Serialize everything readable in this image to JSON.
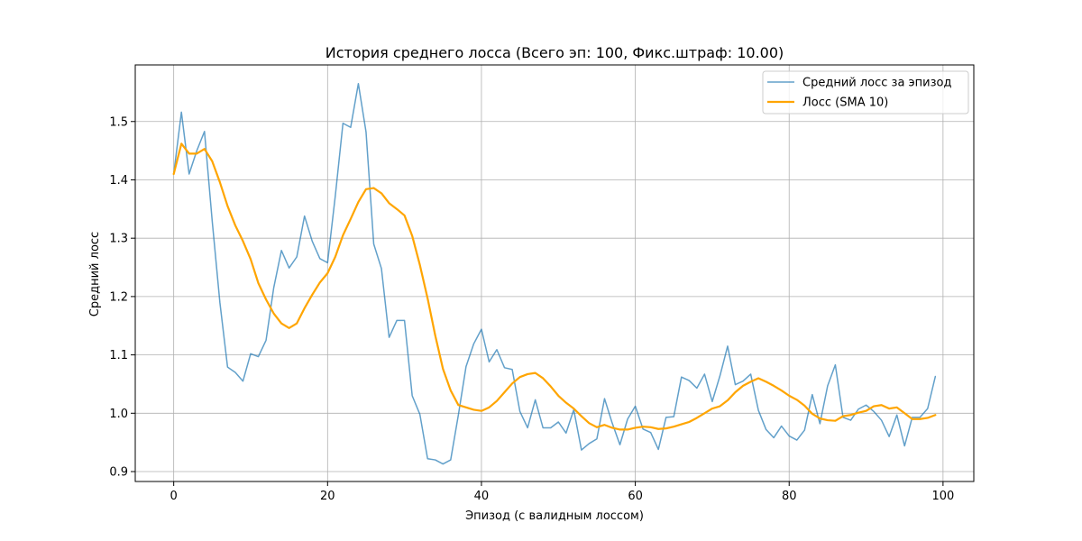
{
  "chart_data": {
    "type": "line",
    "title": "История среднего лосса (Всего эп: 100, Фикс.штраф: 10.00)",
    "xlabel": "Эпизод (с валидным лоссом)",
    "ylabel": "Средний лосс",
    "xlim": [
      -5,
      104
    ],
    "ylim": [
      0.883,
      1.597
    ],
    "xticks": [
      0,
      20,
      40,
      60,
      80,
      100
    ],
    "xtick_labels": [
      "0",
      "20",
      "40",
      "60",
      "80",
      "100"
    ],
    "yticks": [
      0.9,
      1.0,
      1.1,
      1.2,
      1.3,
      1.4,
      1.5
    ],
    "ytick_labels": [
      "0.9",
      "1.0",
      "1.1",
      "1.2",
      "1.3",
      "1.4",
      "1.5"
    ],
    "grid": true,
    "legend_position": "top-right",
    "x": [
      0,
      1,
      2,
      3,
      4,
      5,
      6,
      7,
      8,
      9,
      10,
      11,
      12,
      13,
      14,
      15,
      16,
      17,
      18,
      19,
      20,
      21,
      22,
      23,
      24,
      25,
      26,
      27,
      28,
      29,
      30,
      31,
      32,
      33,
      34,
      35,
      36,
      37,
      38,
      39,
      40,
      41,
      42,
      43,
      44,
      45,
      46,
      47,
      48,
      49,
      50,
      51,
      52,
      53,
      54,
      55,
      56,
      57,
      58,
      59,
      60,
      61,
      62,
      63,
      64,
      65,
      66,
      67,
      68,
      69,
      70,
      71,
      72,
      73,
      74,
      75,
      76,
      77,
      78,
      79,
      80,
      81,
      82,
      83,
      84,
      85,
      86,
      87,
      88,
      89,
      90,
      91,
      92,
      93,
      94,
      95,
      96,
      97,
      98,
      99
    ],
    "series": [
      {
        "name": "Средний лосс за эпизод",
        "color": "#1f77b4",
        "opacity": 0.7,
        "line_width": 1.5,
        "values": [
          1.41,
          1.516,
          1.41,
          1.45,
          1.483,
          1.33,
          1.19,
          1.079,
          1.07,
          1.055,
          1.102,
          1.097,
          1.125,
          1.215,
          1.279,
          1.249,
          1.268,
          1.338,
          1.295,
          1.265,
          1.258,
          1.372,
          1.497,
          1.49,
          1.565,
          1.482,
          1.29,
          1.248,
          1.13,
          1.159,
          1.159,
          1.03,
          0.998,
          0.922,
          0.92,
          0.913,
          0.92,
          0.997,
          1.08,
          1.119,
          1.144,
          1.088,
          1.109,
          1.078,
          1.075,
          1.003,
          0.975,
          1.023,
          0.975,
          0.975,
          0.985,
          0.966,
          1.006,
          0.937,
          0.948,
          0.956,
          1.025,
          0.983,
          0.946,
          0.99,
          1.012,
          0.973,
          0.967,
          0.938,
          0.993,
          0.994,
          1.062,
          1.056,
          1.043,
          1.067,
          1.02,
          1.064,
          1.115,
          1.049,
          1.055,
          1.067,
          1.005,
          0.972,
          0.958,
          0.978,
          0.961,
          0.954,
          0.971,
          1.032,
          0.982,
          1.047,
          1.083,
          0.993,
          0.988,
          1.007,
          1.014,
          1.003,
          0.988,
          0.96,
          0.997,
          0.944,
          0.993,
          0.993,
          1.008,
          1.063
        ]
      },
      {
        "name": "Лосс (SMA 10)",
        "color": "#ffa500",
        "opacity": 1.0,
        "line_width": 2.2,
        "values": [
          1.41,
          1.462,
          1.445,
          1.445,
          1.453,
          1.432,
          1.396,
          1.355,
          1.322,
          1.295,
          1.264,
          1.223,
          1.195,
          1.171,
          1.154,
          1.146,
          1.154,
          1.18,
          1.203,
          1.224,
          1.24,
          1.268,
          1.305,
          1.333,
          1.362,
          1.384,
          1.386,
          1.377,
          1.36,
          1.35,
          1.339,
          1.304,
          1.254,
          1.197,
          1.133,
          1.076,
          1.039,
          1.014,
          1.01,
          1.006,
          1.004,
          1.01,
          1.021,
          1.036,
          1.051,
          1.062,
          1.067,
          1.069,
          1.06,
          1.046,
          1.03,
          1.018,
          1.008,
          0.995,
          0.983,
          0.976,
          0.98,
          0.975,
          0.972,
          0.972,
          0.975,
          0.977,
          0.976,
          0.973,
          0.974,
          0.977,
          0.981,
          0.985,
          0.992,
          1.0,
          1.008,
          1.012,
          1.022,
          1.036,
          1.047,
          1.054,
          1.06,
          1.054,
          1.047,
          1.039,
          1.03,
          1.023,
          1.013,
          0.999,
          0.991,
          0.988,
          0.987,
          0.995,
          0.997,
          1.001,
          1.004,
          1.012,
          1.014,
          1.008,
          1.01,
          1.0,
          0.99,
          0.99,
          0.992,
          0.997
        ]
      }
    ]
  }
}
